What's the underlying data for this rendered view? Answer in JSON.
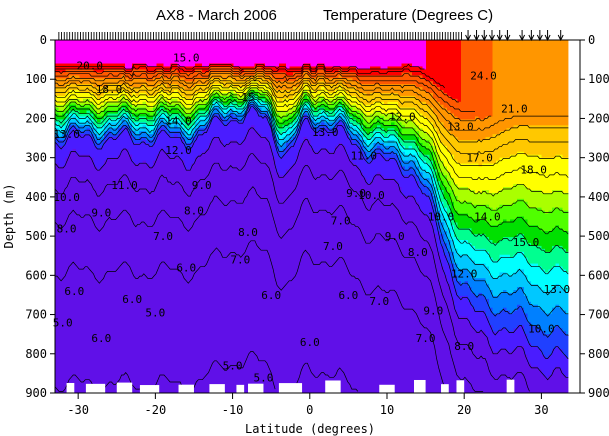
{
  "chart_data": {
    "type": "heatmap",
    "title": "AX8 - March 2006",
    "subtitle": "Temperature (Degrees C)",
    "xlabel": "Latitude (degrees)",
    "ylabel": "Depth (m)",
    "xlim": [
      -33,
      35
    ],
    "ylim": [
      0,
      900
    ],
    "y_inverted": true,
    "x_ticks": [
      -30,
      -20,
      -10,
      0,
      10,
      20,
      30
    ],
    "y_ticks": [
      0,
      100,
      200,
      300,
      400,
      500,
      600,
      700,
      800,
      900
    ],
    "contour_interval_degC": 1,
    "color_scale": [
      {
        "t": 28,
        "color": "#ff00ff"
      },
      {
        "t": 26,
        "color": "#ff0000"
      },
      {
        "t": 24,
        "color": "#ff5a00"
      },
      {
        "t": 22,
        "color": "#ff9600"
      },
      {
        "t": 20,
        "color": "#ffc800"
      },
      {
        "t": 18,
        "color": "#ffff00"
      },
      {
        "t": 17,
        "color": "#aaff00"
      },
      {
        "t": 16,
        "color": "#50ff00"
      },
      {
        "t": 15,
        "color": "#00e000"
      },
      {
        "t": 14,
        "color": "#00ff90"
      },
      {
        "t": 13,
        "color": "#00ffff"
      },
      {
        "t": 12,
        "color": "#00c8ff"
      },
      {
        "t": 11,
        "color": "#0080ff"
      },
      {
        "t": 10,
        "color": "#2040ff"
      },
      {
        "t": 9,
        "color": "#4a1cff"
      },
      {
        "t": 0,
        "color": "#6010e8"
      }
    ],
    "contour_labels": [
      {
        "text": "20.0",
        "lat": -28.5,
        "depth": 65
      },
      {
        "text": "15.0",
        "lat": -16,
        "depth": 45
      },
      {
        "text": "18.0",
        "lat": -26,
        "depth": 125
      },
      {
        "text": "14.0",
        "lat": -17,
        "depth": 205
      },
      {
        "text": "13.0",
        "lat": -31.5,
        "depth": 240
      },
      {
        "text": "12.0",
        "lat": -17,
        "depth": 280
      },
      {
        "text": "11.0",
        "lat": -24,
        "depth": 370
      },
      {
        "text": "10.0",
        "lat": -31.5,
        "depth": 400
      },
      {
        "text": "9.0",
        "lat": -27,
        "depth": 440
      },
      {
        "text": "9.0",
        "lat": -14,
        "depth": 370
      },
      {
        "text": "8.0",
        "lat": -31.5,
        "depth": 480
      },
      {
        "text": "8.0",
        "lat": -15,
        "depth": 435
      },
      {
        "text": "8.0",
        "lat": -8,
        "depth": 490
      },
      {
        "text": "7.0",
        "lat": -19,
        "depth": 500
      },
      {
        "text": "7.0",
        "lat": -9,
        "depth": 560
      },
      {
        "text": "7.0",
        "lat": 3,
        "depth": 525
      },
      {
        "text": "6.0",
        "lat": -16,
        "depth": 580
      },
      {
        "text": "6.0",
        "lat": -5,
        "depth": 650
      },
      {
        "text": "6.0",
        "lat": 5,
        "depth": 650
      },
      {
        "text": "6.0",
        "lat": 0,
        "depth": 770
      },
      {
        "text": "6.0",
        "lat": -30.5,
        "depth": 640
      },
      {
        "text": "6.0",
        "lat": -27,
        "depth": 760
      },
      {
        "text": "6.0",
        "lat": -23,
        "depth": 660
      },
      {
        "text": "5.0",
        "lat": -20,
        "depth": 695
      },
      {
        "text": "5.0",
        "lat": -10,
        "depth": 830
      },
      {
        "text": "5.0",
        "lat": -32,
        "depth": 720
      },
      {
        "text": "5.0",
        "lat": -6,
        "depth": 860
      },
      {
        "text": "15",
        "lat": -8,
        "depth": 145
      },
      {
        "text": "13.0",
        "lat": 2,
        "depth": 235
      },
      {
        "text": "13.0",
        "lat": 19.5,
        "depth": 220
      },
      {
        "text": "13.0",
        "lat": 32,
        "depth": 635
      },
      {
        "text": "12.0",
        "lat": 12,
        "depth": 195
      },
      {
        "text": "12.0",
        "lat": 20,
        "depth": 595
      },
      {
        "text": "11.0",
        "lat": 7,
        "depth": 295
      },
      {
        "text": "10.0",
        "lat": 8,
        "depth": 395
      },
      {
        "text": "10.0",
        "lat": 17,
        "depth": 450
      },
      {
        "text": "10.0",
        "lat": 30,
        "depth": 735
      },
      {
        "text": "9.0",
        "lat": 11,
        "depth": 500
      },
      {
        "text": "9.0",
        "lat": 6,
        "depth": 390
      },
      {
        "text": "9.0",
        "lat": 16,
        "depth": 690
      },
      {
        "text": "8.0",
        "lat": 14,
        "depth": 540
      },
      {
        "text": "8.0",
        "lat": 20,
        "depth": 780
      },
      {
        "text": "7.0",
        "lat": 9,
        "depth": 665
      },
      {
        "text": "7.0",
        "lat": 4,
        "depth": 460
      },
      {
        "text": "7.0",
        "lat": 15,
        "depth": 760
      },
      {
        "text": "24.0",
        "lat": 22.5,
        "depth": 90
      },
      {
        "text": "21.0",
        "lat": 26.5,
        "depth": 175
      },
      {
        "text": "17.0",
        "lat": 22,
        "depth": 300
      },
      {
        "text": "18.0",
        "lat": 29,
        "depth": 330
      },
      {
        "text": "14.0",
        "lat": 23,
        "depth": 450
      },
      {
        "text": "15.0",
        "lat": 28,
        "depth": 515
      }
    ]
  }
}
